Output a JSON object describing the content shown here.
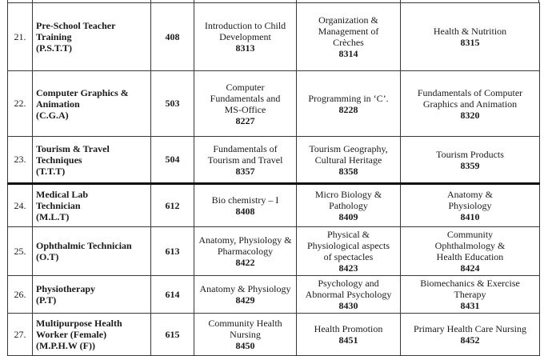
{
  "document": {
    "description": "Course and subject codes table, serial numbers 21 to 27",
    "text_color": "#1a1a1a",
    "border_color": "#3a3a3a",
    "background_color": "#ffffff"
  },
  "table": {
    "rows": [
      {
        "serial": "21.",
        "course": "Pre-School Teacher\nTraining\n(P.S.T.T)",
        "code": "408",
        "subjects": [
          {
            "name": "Introduction to Child\nDevelopment",
            "code": "8313"
          },
          {
            "name": "Organization &\nManagement of\nCrèches",
            "code": "8314"
          },
          {
            "name": "Health & Nutrition",
            "code": "8315"
          }
        ]
      },
      {
        "serial": "22.",
        "course": "Computer Graphics &\nAnimation\n(C.G.A)",
        "code": "503",
        "subjects": [
          {
            "name": "Computer\nFundamentals and\nMS-Office",
            "code": "8227"
          },
          {
            "name": "Programming in ‘C’.",
            "code": "8228"
          },
          {
            "name": "Fundamentals of Computer\nGraphics and Animation",
            "code": "8320"
          }
        ]
      },
      {
        "serial": "23.",
        "course": "Tourism & Travel\nTechniques\n(T.T.T)",
        "code": "504",
        "subjects": [
          {
            "name": "Fundamentals of\nTourism and Travel",
            "code": "8357"
          },
          {
            "name": "Tourism Geography,\nCultural Heritage",
            "code": "8358"
          },
          {
            "name": "Tourism Products",
            "code": "8359"
          }
        ]
      },
      {
        "serial": "24.",
        "course": "Medical Lab\nTechnician\n(M.L.T)",
        "code": "612",
        "new_section": true,
        "subjects": [
          {
            "name": "Bio chemistry – I",
            "code": "8408"
          },
          {
            "name": "Micro Biology &\nPathology",
            "code": "8409"
          },
          {
            "name": "Anatomy &\nPhysiology",
            "code": "8410"
          }
        ]
      },
      {
        "serial": "25.",
        "course": "Ophthalmic Technician\n(O.T)",
        "code": "613",
        "subjects": [
          {
            "name": "Anatomy, Physiology &\nPharmacology",
            "code": "8422"
          },
          {
            "name": "Physical &\nPhysiological aspects\nof spectacles",
            "code": "8423"
          },
          {
            "name": "Community\nOphthalmology &\nHealth Education",
            "code": "8424"
          }
        ]
      },
      {
        "serial": "26.",
        "course": "Physiotherapy\n(P.T)",
        "code": "614",
        "subjects": [
          {
            "name": "Anatomy & Physiology",
            "code": "8429"
          },
          {
            "name": "Psychology  and\nAbnormal Psychology",
            "code": "8430"
          },
          {
            "name": "Biomechanics & Exercise\nTherapy",
            "code": "8431"
          }
        ]
      },
      {
        "serial": "27.",
        "course": "Multipurpose Health\nWorker (Female)\n(M.P.H.W (F))",
        "code": "615",
        "subjects": [
          {
            "name": "Community Health\nNursing",
            "code": "8450"
          },
          {
            "name": "Health  Promotion",
            "code": "8451"
          },
          {
            "name": "Primary Health Care Nursing",
            "code": "8452"
          }
        ]
      }
    ]
  }
}
